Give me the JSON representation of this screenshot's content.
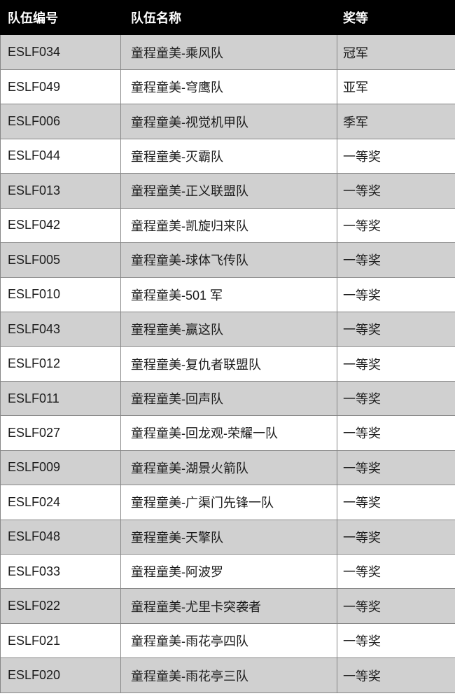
{
  "colors": {
    "header_bg": "#000000",
    "header_text": "#ffffff",
    "row_alt_bg": "#d0d0d0",
    "row_bg": "#ffffff",
    "border": "#878787",
    "cell_text": "#1c1c1c"
  },
  "header": {
    "team_id": "队伍编号",
    "team_name": "队伍名称",
    "award": "奖等"
  },
  "rows": [
    {
      "team_id": "ESLF034",
      "team_name": "童程童美-乘风队",
      "award": "冠军"
    },
    {
      "team_id": "ESLF049",
      "team_name": "童程童美-穹鹰队",
      "award": "亚军"
    },
    {
      "team_id": "ESLF006",
      "team_name": "童程童美-视觉机甲队",
      "award": "季军"
    },
    {
      "team_id": "ESLF044",
      "team_name": "童程童美-灭霸队",
      "award": "一等奖"
    },
    {
      "team_id": "ESLF013",
      "team_name": "童程童美-正义联盟队",
      "award": "一等奖"
    },
    {
      "team_id": "ESLF042",
      "team_name": "童程童美-凯旋归来队",
      "award": "一等奖"
    },
    {
      "team_id": "ESLF005",
      "team_name": "童程童美-球体飞传队",
      "award": "一等奖"
    },
    {
      "team_id": "ESLF010",
      "team_name": "童程童美-501 军",
      "award": "一等奖"
    },
    {
      "team_id": "ESLF043",
      "team_name": "童程童美-赢这队",
      "award": "一等奖"
    },
    {
      "team_id": "ESLF012",
      "team_name": "童程童美-复仇者联盟队",
      "award": "一等奖"
    },
    {
      "team_id": "ESLF011",
      "team_name": "童程童美-回声队",
      "award": "一等奖"
    },
    {
      "team_id": "ESLF027",
      "team_name": "童程童美-回龙观-荣耀一队",
      "award": "一等奖"
    },
    {
      "team_id": "ESLF009",
      "team_name": "童程童美-湖景火箭队",
      "award": "一等奖"
    },
    {
      "team_id": "ESLF024",
      "team_name": "童程童美-广渠门先锋一队",
      "award": "一等奖"
    },
    {
      "team_id": "ESLF048",
      "team_name": "童程童美-天擎队",
      "award": "一等奖"
    },
    {
      "team_id": "ESLF033",
      "team_name": "童程童美-阿波罗",
      "award": "一等奖"
    },
    {
      "team_id": "ESLF022",
      "team_name": "童程童美-尤里卡突袭者",
      "award": "一等奖"
    },
    {
      "team_id": "ESLF021",
      "team_name": "童程童美-雨花亭四队",
      "award": "一等奖"
    },
    {
      "team_id": "ESLF020",
      "team_name": "童程童美-雨花亭三队",
      "award": "一等奖"
    }
  ]
}
